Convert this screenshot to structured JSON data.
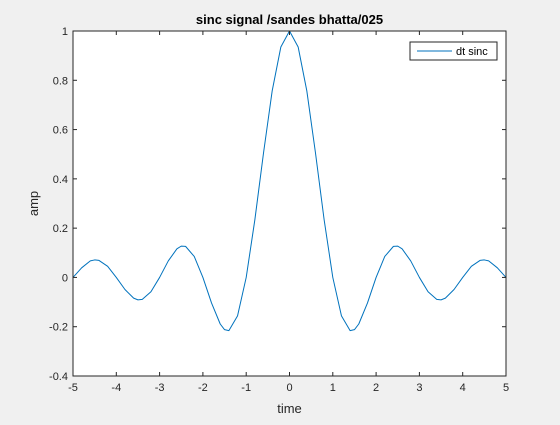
{
  "chart_data": {
    "type": "line",
    "title": "sinc signal /sandes bhatta/025",
    "xlabel": "time",
    "ylabel": "amp",
    "xlim": [
      -5,
      5
    ],
    "ylim": [
      -0.4,
      1
    ],
    "x_ticks": [
      -5,
      -4,
      -3,
      -2,
      -1,
      0,
      1,
      2,
      3,
      4,
      5
    ],
    "y_ticks": [
      -0.4,
      -0.2,
      0,
      0.2,
      0.4,
      0.6,
      0.8,
      1
    ],
    "grid": false,
    "legend_position": "top-right",
    "series": [
      {
        "name": "dt sinc",
        "color": "#0072bd",
        "x": [
          -5.0,
          -4.8,
          -4.6,
          -4.5,
          -4.4,
          -4.2,
          -4.0,
          -3.8,
          -3.6,
          -3.5,
          -3.4,
          -3.2,
          -3.0,
          -2.8,
          -2.6,
          -2.5,
          -2.4,
          -2.2,
          -2.0,
          -1.8,
          -1.6,
          -1.5,
          -1.4,
          -1.2,
          -1.0,
          -0.8,
          -0.6,
          -0.4,
          -0.2,
          0.0,
          0.2,
          0.4,
          0.6,
          0.8,
          1.0,
          1.2,
          1.4,
          1.5,
          1.6,
          1.8,
          2.0,
          2.2,
          2.4,
          2.5,
          2.6,
          2.8,
          3.0,
          3.2,
          3.4,
          3.5,
          3.6,
          3.8,
          4.0,
          4.2,
          4.4,
          4.5,
          4.6,
          4.8,
          5.0
        ],
        "y": [
          0.0,
          0.039,
          0.067,
          0.071,
          0.069,
          0.045,
          0.0,
          -0.049,
          -0.084,
          -0.091,
          -0.089,
          -0.058,
          0.0,
          0.067,
          0.116,
          0.127,
          0.126,
          0.085,
          0.0,
          -0.104,
          -0.189,
          -0.212,
          -0.216,
          -0.156,
          0.0,
          0.234,
          0.505,
          0.757,
          0.935,
          1.0,
          0.935,
          0.757,
          0.505,
          0.234,
          0.0,
          -0.156,
          -0.216,
          -0.212,
          -0.189,
          -0.104,
          0.0,
          0.085,
          0.126,
          0.127,
          0.116,
          0.067,
          0.0,
          -0.058,
          -0.089,
          -0.091,
          -0.084,
          -0.049,
          0.0,
          0.045,
          0.069,
          0.071,
          0.067,
          0.039,
          0.0
        ]
      }
    ]
  }
}
